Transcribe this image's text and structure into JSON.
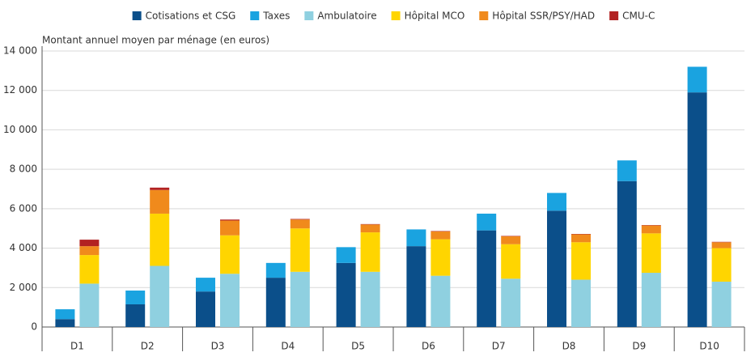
{
  "chart_data": {
    "type": "grouped_stacked_bar",
    "y_axis_label": "Montant annuel moyen par ménage (en euros)",
    "categories": [
      "D1",
      "D2",
      "D3",
      "D4",
      "D5",
      "D6",
      "D7",
      "D8",
      "D9",
      "D10"
    ],
    "stacks": [
      {
        "series": [
          {
            "name": "Cotisations et CSG",
            "color": "#0b4f8a",
            "values": [
              400,
              1150,
              1800,
              2500,
              3250,
              4100,
              4900,
              5900,
              7400,
              11900
            ]
          },
          {
            "name": "Taxes",
            "color": "#1aa3e0",
            "values": [
              500,
              700,
              700,
              750,
              800,
              850,
              850,
              900,
              1050,
              1300
            ]
          }
        ]
      },
      {
        "series": [
          {
            "name": "Ambulatoire",
            "color": "#8fd0e0",
            "values": [
              2200,
              3100,
              2700,
              2800,
              2800,
              2600,
              2450,
              2400,
              2750,
              2300
            ]
          },
          {
            "name": "Hôpital MCO",
            "color": "#ffd500",
            "values": [
              1450,
              2650,
              1950,
              2200,
              2000,
              1850,
              1750,
              1900,
              2000,
              1700
            ]
          },
          {
            "name": "Hôpital SSR/PSY/HAD",
            "color": "#f08a1c",
            "values": [
              450,
              1200,
              750,
              450,
              400,
              400,
              400,
              400,
              400,
              300
            ]
          },
          {
            "name": "CMU-C",
            "color": "#b22222",
            "values": [
              330,
              120,
              50,
              30,
              20,
              20,
              20,
              20,
              20,
              20
            ]
          }
        ]
      }
    ],
    "ylim": [
      0,
      14000
    ],
    "yticks": [
      0,
      {
        "value": 2000,
        "label": "2 000"
      },
      {
        "value": 4000,
        "label": "4 000"
      },
      {
        "value": 6000,
        "label": "6 000"
      },
      {
        "value": 8000,
        "label": "8 000"
      },
      {
        "value": 10000,
        "label": "10 000"
      },
      {
        "value": 12000,
        "label": "12 000"
      },
      {
        "value": 14000,
        "label": "14 000"
      }
    ],
    "grid": true
  }
}
